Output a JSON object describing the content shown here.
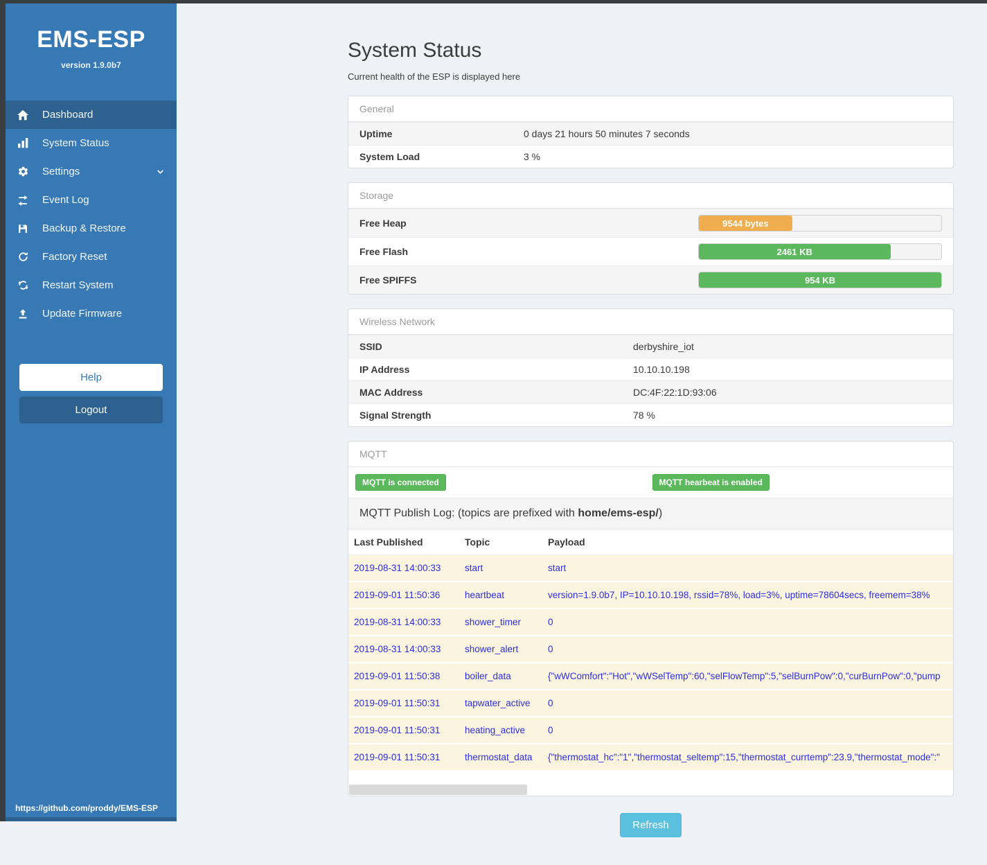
{
  "app": {
    "title": "EMS-ESP",
    "version": "version 1.9.0b7",
    "github_link": "https://github.com/proddy/EMS-ESP"
  },
  "sidebar": {
    "items": [
      {
        "label": "Dashboard",
        "icon": "home-icon",
        "active": true
      },
      {
        "label": "System Status",
        "icon": "chart-icon",
        "active": false
      },
      {
        "label": "Settings",
        "icon": "gear-icon",
        "active": false,
        "chevron": "down"
      },
      {
        "label": "Event Log",
        "icon": "swap-arrows-icon",
        "active": false
      },
      {
        "label": "Backup & Restore",
        "icon": "floppy-icon",
        "active": false
      },
      {
        "label": "Factory Reset",
        "icon": "redo-icon",
        "active": false
      },
      {
        "label": "Restart System",
        "icon": "sync-icon",
        "active": false
      },
      {
        "label": "Update Firmware",
        "icon": "upload-icon",
        "active": false
      }
    ],
    "help_label": "Help",
    "logout_label": "Logout"
  },
  "page": {
    "title": "System Status",
    "subtitle": "Current health of the ESP is displayed here"
  },
  "panels": {
    "general": {
      "title": "General",
      "rows": [
        {
          "label": "Uptime",
          "value": "0 days 21 hours 50 minutes 7 seconds"
        },
        {
          "label": "System Load",
          "value": "3 %"
        }
      ]
    },
    "storage": {
      "title": "Storage",
      "rows": [
        {
          "label": "Free Heap",
          "bar_label": "9544 bytes",
          "percent": 38.5,
          "color": "#f0ad4e"
        },
        {
          "label": "Free Flash",
          "bar_label": "2461 KB",
          "percent": 79,
          "color": "#5cb85c"
        },
        {
          "label": "Free SPIFFS",
          "bar_label": "954 KB",
          "percent": 100,
          "color": "#5cb85c"
        }
      ]
    },
    "wireless": {
      "title": "Wireless Network",
      "rows": [
        {
          "label": "SSID",
          "value": "derbyshire_iot"
        },
        {
          "label": "IP Address",
          "value": "10.10.10.198"
        },
        {
          "label": "MAC Address",
          "value": "DC:4F:22:1D:93:06"
        },
        {
          "label": "Signal Strength",
          "value": "78 %"
        }
      ]
    },
    "mqtt": {
      "title": "MQTT",
      "badges": [
        "MQTT is connected",
        "MQTT hearbeat is enabled"
      ],
      "publish_log": {
        "before": "MQTT Publish Log: (topics are prefixed with ",
        "bold": "home/ems-esp/",
        "after": ")"
      },
      "table": {
        "headers": [
          "Last Published",
          "Topic",
          "Payload"
        ],
        "rows": [
          [
            "2019-08-31 14:00:33",
            "start",
            "start"
          ],
          [
            "2019-09-01 11:50:36",
            "heartbeat",
            "version=1.9.0b7, IP=10.10.10.198, rssid=78%, load=3%, uptime=78604secs, freemem=38%"
          ],
          [
            "2019-08-31 14:00:33",
            "shower_timer",
            "0"
          ],
          [
            "2019-08-31 14:00:33",
            "shower_alert",
            "0"
          ],
          [
            "2019-09-01 11:50:38",
            "boiler_data",
            "{\"wWComfort\":\"Hot\",\"wWSelTemp\":60,\"selFlowTemp\":5,\"selBurnPow\":0,\"curBurnPow\":0,\"pump"
          ],
          [
            "2019-09-01 11:50:31",
            "tapwater_active",
            "0"
          ],
          [
            "2019-09-01 11:50:31",
            "heating_active",
            "0"
          ],
          [
            "2019-09-01 11:50:31",
            "thermostat_data",
            "{\"thermostat_hc\":\"1\",\"thermostat_seltemp\":15,\"thermostat_currtemp\":23.9,\"thermostat_mode\":\""
          ]
        ]
      },
      "refresh_label": "Refresh"
    }
  },
  "colors": {
    "sidebar": "#3779b5",
    "sidebar_active": "#2d6290",
    "badge_green": "#5cb85c",
    "bar_orange": "#f0ad4e",
    "bar_green": "#5cb85c",
    "refresh_blue": "#5bc0de",
    "log_text_blue": "#2d2de2",
    "log_row_cream": "#fbf5df"
  }
}
